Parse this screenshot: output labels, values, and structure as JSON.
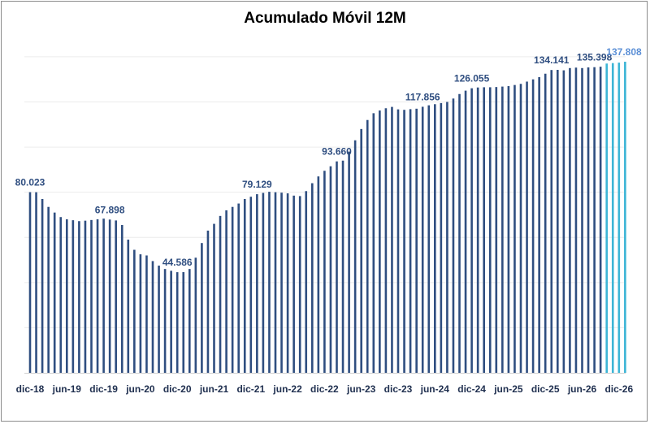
{
  "chart_data": {
    "type": "bar",
    "title": "Acumulado Móvil 12M",
    "xlabel": "",
    "ylabel": "",
    "ylim": [
      0,
      145
    ],
    "grid": true,
    "legend": "none",
    "x_tick_labels": [
      "dic-18",
      "jun-19",
      "dic-19",
      "jun-20",
      "dic-20",
      "jun-21",
      "dic-21",
      "jun-22",
      "dic-22",
      "jun-23",
      "dic-23",
      "jun-24",
      "dic-24",
      "jun-25",
      "dic-25",
      "jun-26",
      "dic-26"
    ],
    "actual_color": "#2f4e80",
    "forecast_color": "#3cb5d6",
    "series": [
      {
        "kind": "actual",
        "start": "dic-18",
        "values": [
          80.023,
          80.0,
          77.0,
          73.5,
          71.0,
          69.0,
          68.0,
          67.6,
          67.2,
          67.4,
          67.7,
          68.0,
          68.3,
          67.898,
          67.5,
          65.5,
          59.0,
          54.5,
          52.5,
          52.0,
          49.5,
          47.5,
          46.0,
          45.2,
          44.586,
          44.6,
          46.0,
          51.0,
          57.5,
          63.0,
          66.0,
          69.5,
          72.0,
          73.5,
          75.0,
          77.0,
          78.0,
          79.129,
          79.7,
          80.2,
          80.0,
          79.8,
          79.5,
          78.5,
          78.3,
          80.5,
          84.0,
          87.0,
          89.5,
          91.5,
          93.66,
          94.0,
          98.0,
          103.0,
          108.0,
          112.0,
          115.0,
          116.2,
          117.2,
          117.8,
          116.7,
          116.5,
          116.8,
          117.0,
          117.856,
          118.5,
          119.0,
          119.5,
          120.0,
          121.5,
          123.5,
          125.0,
          126.055,
          126.4,
          126.5,
          126.5,
          126.6,
          126.8,
          127.0,
          127.5,
          128.0,
          129.0,
          130.0,
          131.0,
          132.5,
          134.141,
          134.2,
          134.0,
          135.0,
          135.2,
          135.0,
          135.3,
          135.398,
          135.6
        ]
      },
      {
        "kind": "forecast",
        "start": "oct-26",
        "values": [
          137.0,
          137.2,
          137.4,
          137.808
        ]
      }
    ],
    "data_labels": [
      {
        "text": "80.023",
        "at": "dic-18",
        "color": "#2f4e80"
      },
      {
        "text": "67.898",
        "at": "ene-20",
        "color": "#2f4e80"
      },
      {
        "text": "44.586",
        "at": "dic-20",
        "color": "#2f4e80"
      },
      {
        "text": "79.129",
        "at": "ene-22",
        "color": "#2f4e80"
      },
      {
        "text": "93.660",
        "at": "feb-23",
        "color": "#2f4e80"
      },
      {
        "text": "117.856",
        "at": "abr-24",
        "color": "#2f4e80"
      },
      {
        "text": "126.055",
        "at": "dic-24",
        "color": "#2f4e80"
      },
      {
        "text": "134.141",
        "at": "ene-26",
        "color": "#2f4e80"
      },
      {
        "text": "135.398",
        "at": "ago-26",
        "color": "#2f4e80"
      },
      {
        "text": "137.808",
        "at": "ene-27",
        "color": "#5b8fd6"
      }
    ]
  }
}
